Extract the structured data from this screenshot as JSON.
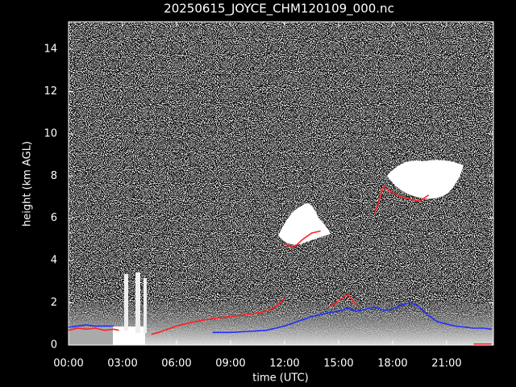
{
  "chart_data": {
    "type": "line",
    "title": "20250615_JOYCE_CHM120109_000.nc",
    "xlabel": "time (UTC)",
    "ylabel": "height (km AGL)",
    "xlim": [
      0,
      23.6
    ],
    "xticks": [
      {
        "value": 0,
        "label": "00:00"
      },
      {
        "value": 3,
        "label": "03:00"
      },
      {
        "value": 6,
        "label": "06:00"
      },
      {
        "value": 9,
        "label": "09:00"
      },
      {
        "value": 12,
        "label": "12:00"
      },
      {
        "value": 15,
        "label": "15:00"
      },
      {
        "value": 18,
        "label": "18:00"
      },
      {
        "value": 21,
        "label": "21:00"
      }
    ],
    "ylim": [
      0,
      15.3
    ],
    "yticks": [
      0,
      2,
      4,
      6,
      8,
      10,
      12,
      14
    ],
    "series": [
      {
        "color": "#ff2020",
        "x": [
          0,
          0.5,
          1,
          1.5,
          2,
          2.5,
          2.8,
          null,
          4.6,
          5,
          6,
          7,
          8,
          9,
          10,
          11,
          11.5,
          12,
          null,
          12,
          12.5,
          13,
          13.5,
          14,
          null,
          14.5,
          15,
          15.5,
          16,
          null,
          17,
          17.5,
          18,
          18.5,
          19,
          19.5,
          20,
          null,
          22.5,
          23,
          23.5
        ],
        "values": [
          0.7,
          0.8,
          0.75,
          0.8,
          0.7,
          0.75,
          0.7,
          null,
          0.5,
          0.6,
          0.9,
          1.1,
          1.25,
          1.35,
          1.45,
          1.6,
          1.8,
          2.2,
          null,
          4.8,
          4.6,
          5.0,
          5.3,
          5.4,
          null,
          1.8,
          2.1,
          2.4,
          1.9,
          null,
          6.2,
          7.5,
          7.2,
          7.0,
          6.9,
          6.8,
          7.1,
          null,
          0.05,
          0.05,
          0.05
        ]
      },
      {
        "color": "#2030ff",
        "x": [
          0,
          0.5,
          1,
          1.5,
          2,
          2.5,
          null,
          8,
          9,
          10,
          11,
          12,
          12.5,
          13,
          13.5,
          14,
          14.5,
          15,
          15.5,
          16,
          16.5,
          17,
          17.5,
          18,
          18.5,
          19,
          19.5,
          20,
          20.5,
          21,
          21.5,
          22,
          22.5,
          23,
          23.5
        ],
        "values": [
          0.85,
          0.9,
          0.95,
          0.9,
          0.9,
          0.9,
          null,
          0.6,
          0.6,
          0.65,
          0.7,
          0.9,
          1.05,
          1.2,
          1.35,
          1.45,
          1.55,
          1.6,
          1.75,
          1.6,
          1.7,
          1.8,
          1.65,
          1.7,
          1.9,
          2.0,
          1.8,
          1.4,
          1.1,
          1.0,
          0.9,
          0.85,
          0.8,
          0.8,
          0.75
        ]
      }
    ]
  }
}
